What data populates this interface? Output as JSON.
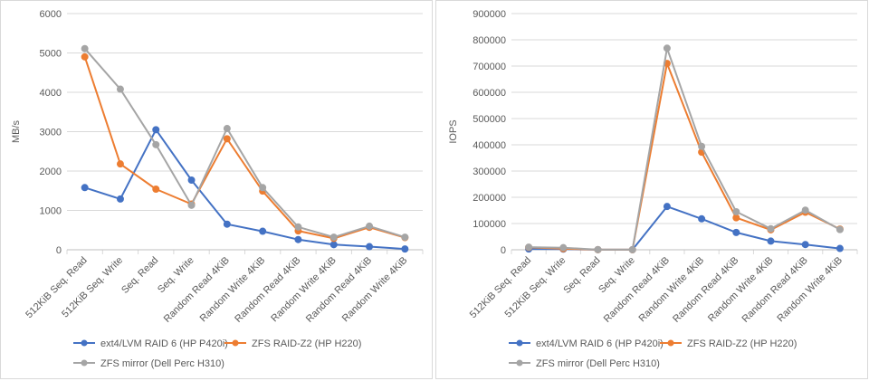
{
  "chart_data": [
    {
      "type": "line",
      "ylabel": "MB/s",
      "ylim": [
        0,
        6000
      ],
      "yticks": [
        0,
        1000,
        2000,
        3000,
        4000,
        5000,
        6000
      ],
      "grid": true,
      "legend_position": "bottom",
      "categories": [
        "512KiB Seq. Read",
        "512KiB Seq. Write",
        "Seq. Read",
        "Seq. Write",
        "Random Read 4KiB",
        "Random Write 4KiB",
        "Random Read 4KiB",
        "Random Write 4KiB",
        "Random Read 4KiB",
        "Random Write 4KiB"
      ],
      "series": [
        {
          "name": "ext4/LVM RAID 6 (HP P420i)",
          "color": "#4472C4",
          "values": [
            1580,
            1290,
            3050,
            1770,
            650,
            470,
            260,
            130,
            80,
            20
          ]
        },
        {
          "name": "ZFS RAID-Z2 (HP H220)",
          "color": "#ED7D31",
          "values": [
            4900,
            2180,
            1540,
            1160,
            2820,
            1490,
            480,
            290,
            570,
            310
          ]
        },
        {
          "name": "ZFS mirror (Dell Perc H310)",
          "color": "#A5A5A5",
          "values": [
            5110,
            4080,
            2670,
            1130,
            3080,
            1580,
            580,
            320,
            600,
            320
          ]
        }
      ]
    },
    {
      "type": "line",
      "ylabel": "IOPS",
      "ylim": [
        0,
        900000
      ],
      "yticks": [
        0,
        100000,
        200000,
        300000,
        400000,
        500000,
        600000,
        700000,
        800000,
        900000
      ],
      "grid": true,
      "legend_position": "bottom",
      "categories": [
        "512KiB Seq. Read",
        "512KiB Seq. Write",
        "Seq. Read",
        "Seq. Write",
        "Random Read 4KiB",
        "Random Write 4KiB",
        "Random Read 4KiB",
        "Random Write 4KiB",
        "Random Read 4KiB",
        "Random Write 4KiB"
      ],
      "series": [
        {
          "name": "ext4/LVM RAID 6 (HP P420i)",
          "color": "#4472C4",
          "values": [
            3000,
            2500,
            500,
            300,
            165000,
            118000,
            66000,
            33000,
            20000,
            5000
          ]
        },
        {
          "name": "ZFS RAID-Z2 (HP H220)",
          "color": "#ED7D31",
          "values": [
            9000,
            4000,
            300,
            200,
            710000,
            372000,
            122000,
            76000,
            143000,
            79000
          ]
        },
        {
          "name": "ZFS mirror (Dell Perc H310)",
          "color": "#A5A5A5",
          "values": [
            10000,
            8000,
            500,
            300,
            768000,
            394000,
            145000,
            80000,
            151000,
            77000
          ]
        }
      ]
    }
  ]
}
